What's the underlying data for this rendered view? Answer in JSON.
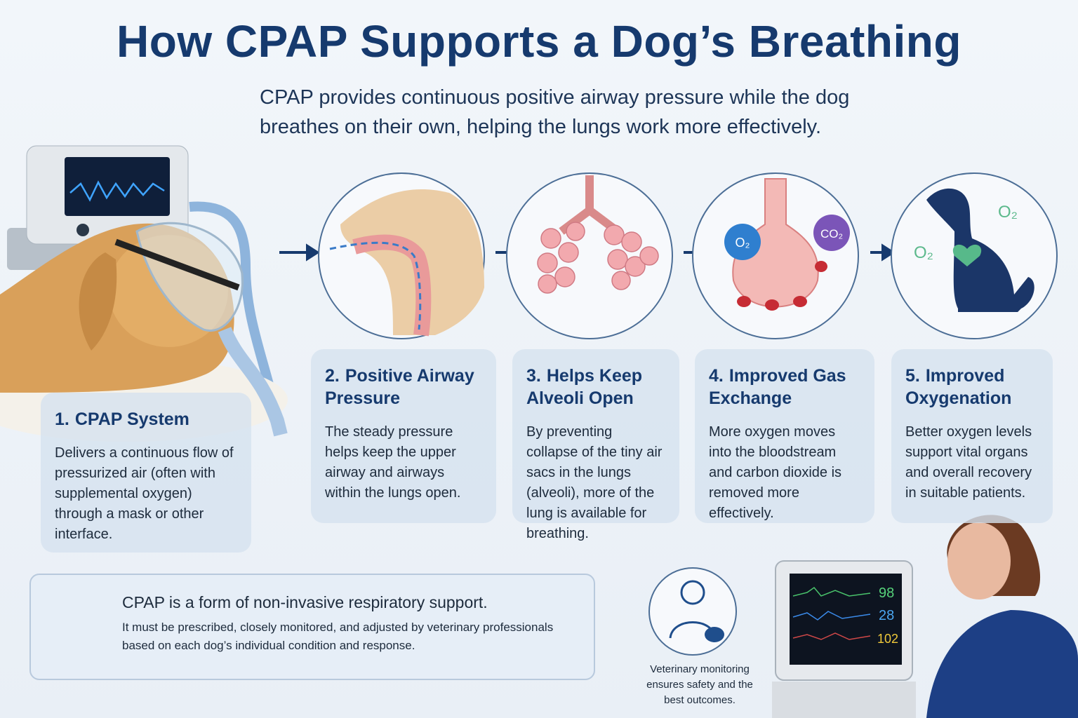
{
  "header": {
    "title": "How CPAP Supports a Dog’s Breathing",
    "subtitle": "CPAP provides continuous positive airway pressure while the dog breathes on their own, helping the lungs work more effectively."
  },
  "steps": [
    {
      "number": "1.",
      "title": "CPAP System",
      "body": "Delivers a continuous flow of pressurized air (often with supplemental oxygen) through a mask or other interface."
    },
    {
      "number": "2.",
      "title": "Positive Airway Pressure",
      "body": "The steady pressure helps keep the upper airway and airways within the lungs open."
    },
    {
      "number": "3.",
      "title": "Helps Keep Alveoli Open",
      "body": "By preventing collapse of the tiny air sacs in the lungs (alveoli), more of the lung is available for breathing."
    },
    {
      "number": "4.",
      "title": "Improved Gas Exchange",
      "body": "More oxygen moves into the bloodstream and carbon dioxide is removed more effectively."
    },
    {
      "number": "5.",
      "title": "Improved Oxygenation",
      "body": "Better oxygen levels support vital organs and overall recovery in suitable patients."
    }
  ],
  "illustration_labels": {
    "oxygen": "O₂",
    "carbon_dioxide": "CO₂"
  },
  "note": {
    "heading": "CPAP is a form of non-invasive respiratory support.",
    "body": "It must be prescribed, closely monitored, and adjusted by veterinary professionals based on each dog’s individual condition and response."
  },
  "monitoring": {
    "caption": "Veterinary monitoring ensures safety and the best outcomes.",
    "readings": [
      "98",
      "28",
      "102"
    ]
  }
}
